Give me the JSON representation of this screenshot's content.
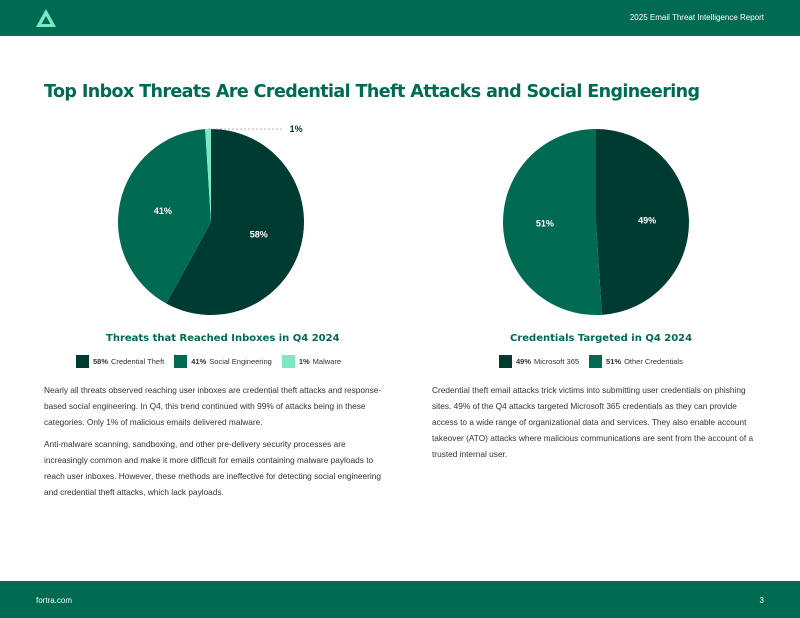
{
  "header": {
    "report_title": "2025 Email Threat Intelligence Report"
  },
  "headline": "Top Inbox Threats Are Credential Theft Attacks and Social Engineering",
  "colors": {
    "dark_green": "#003b33",
    "mid_green": "#006a53",
    "light_green": "#7ee8c4",
    "brand": "#006a53"
  },
  "chart_data": [
    {
      "type": "pie",
      "title": "Threats that Reached Inboxes in Q4 2024",
      "series": [
        {
          "name": "Credential Theft",
          "value": 58,
          "label": "58%",
          "color": "#003b33"
        },
        {
          "name": "Social Engineering",
          "value": 41,
          "label": "41%",
          "color": "#006a53"
        },
        {
          "name": "Malware",
          "value": 1,
          "label": "1%",
          "color": "#7ee8c4"
        }
      ],
      "legend": [
        {
          "pct": "58%",
          "name": "Credential Theft",
          "color": "#003b33"
        },
        {
          "pct": "41%",
          "name": "Social Engineering",
          "color": "#006a53"
        },
        {
          "pct": "1%",
          "name": "Malware",
          "color": "#7ee8c4"
        }
      ]
    },
    {
      "type": "pie",
      "title": "Credentials Targeted in Q4 2024",
      "series": [
        {
          "name": "Microsoft 365",
          "value": 49,
          "label": "49%",
          "color": "#003b33"
        },
        {
          "name": "Other Credentials",
          "value": 51,
          "label": "51%",
          "color": "#006a53"
        }
      ],
      "legend": [
        {
          "pct": "49%",
          "name": "Microsoft 365",
          "color": "#003b33"
        },
        {
          "pct": "51%",
          "name": "Other Credentials",
          "color": "#006a53"
        }
      ]
    }
  ],
  "left_text": [
    "Nearly all threats observed reaching user inboxes are credential theft attacks and response-based social engineering. In Q4, this trend continued with 99% of attacks being in these categories. Only 1% of malicious emails delivered malware.",
    "Anti-malware scanning, sandboxing, and other pre-delivery security processes are increasingly common and make it more difficult for emails containing malware payloads to reach user inboxes. However, these methods are ineffective for detecting social engineering and credential theft attacks, which lack payloads."
  ],
  "right_text": [
    "Credential theft email attacks trick victims into submitting user credentials on phishing sites. 49% of the Q4 attacks targeted Microsoft 365 credentials as they can provide access to a wide range of organizational data and services. They also enable account takeover (ATO) attacks where malicious communications are sent from the account of a trusted internal user."
  ],
  "footer": {
    "site": "fortra.com",
    "page": "3"
  }
}
